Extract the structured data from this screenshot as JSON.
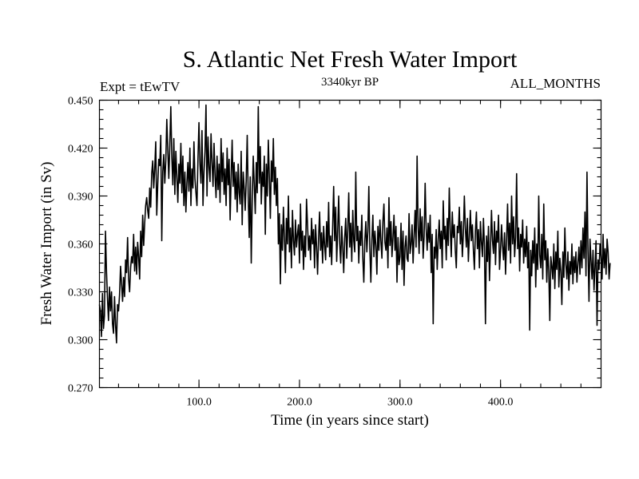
{
  "chart_data": {
    "type": "line",
    "title": "S. Atlantic Net Fresh Water Import",
    "subtitle_left": "Expt = tEwTV",
    "subtitle_center": "3340kyr BP",
    "subtitle_right": "ALL_MONTHS",
    "xlabel": "Time (in years since start)",
    "ylabel": "Fresh Water Import (in Sv)",
    "xlim": [
      1,
      500
    ],
    "ylim": [
      0.27,
      0.45
    ],
    "x_ticks": [
      100,
      200,
      300,
      400
    ],
    "x_tick_labels": [
      "100.0",
      "200.0",
      "300.0",
      "400.0"
    ],
    "y_ticks": [
      0.27,
      0.3,
      0.33,
      0.36,
      0.39,
      0.42,
      0.45
    ],
    "y_tick_labels": [
      "0.270",
      "0.300",
      "0.330",
      "0.360",
      "0.390",
      "0.420",
      "0.450"
    ],
    "grid": false,
    "series": [
      {
        "name": "Fresh Water Import",
        "color": "#000000",
        "x_start": 1,
        "x_step": 1,
        "values": [
          0.322,
          0.318,
          0.302,
          0.329,
          0.307,
          0.315,
          0.368,
          0.343,
          0.326,
          0.312,
          0.333,
          0.318,
          0.33,
          0.31,
          0.304,
          0.327,
          0.309,
          0.298,
          0.322,
          0.318,
          0.328,
          0.346,
          0.335,
          0.324,
          0.339,
          0.327,
          0.35,
          0.342,
          0.364,
          0.338,
          0.33,
          0.345,
          0.352,
          0.348,
          0.366,
          0.343,
          0.358,
          0.341,
          0.361,
          0.352,
          0.338,
          0.368,
          0.352,
          0.378,
          0.359,
          0.373,
          0.384,
          0.389,
          0.381,
          0.376,
          0.395,
          0.383,
          0.404,
          0.412,
          0.395,
          0.407,
          0.424,
          0.378,
          0.397,
          0.413,
          0.409,
          0.428,
          0.362,
          0.405,
          0.416,
          0.398,
          0.412,
          0.438,
          0.419,
          0.401,
          0.422,
          0.446,
          0.415,
          0.397,
          0.426,
          0.391,
          0.418,
          0.402,
          0.386,
          0.41,
          0.398,
          0.423,
          0.392,
          0.415,
          0.384,
          0.405,
          0.38,
          0.398,
          0.411,
          0.393,
          0.42,
          0.384,
          0.407,
          0.395,
          0.424,
          0.401,
          0.392,
          0.384,
          0.413,
          0.436,
          0.41,
          0.398,
          0.431,
          0.384,
          0.405,
          0.418,
          0.447,
          0.39,
          0.427,
          0.408,
          0.399,
          0.429,
          0.411,
          0.396,
          0.423,
          0.403,
          0.389,
          0.415,
          0.394,
          0.41,
          0.386,
          0.426,
          0.399,
          0.417,
          0.391,
          0.407,
          0.384,
          0.42,
          0.397,
          0.413,
          0.375,
          0.402,
          0.425,
          0.396,
          0.411,
          0.388,
          0.405,
          0.38,
          0.41,
          0.392,
          0.385,
          0.418,
          0.372,
          0.405,
          0.395,
          0.381,
          0.4,
          0.428,
          0.39,
          0.364,
          0.402,
          0.348,
          0.388,
          0.415,
          0.397,
          0.379,
          0.411,
          0.392,
          0.446,
          0.398,
          0.421,
          0.385,
          0.405,
          0.396,
          0.415,
          0.366,
          0.41,
          0.39,
          0.425,
          0.402,
          0.376,
          0.412,
          0.399,
          0.426,
          0.391,
          0.408,
          0.384,
          0.401,
          0.36,
          0.379,
          0.335,
          0.372,
          0.356,
          0.383,
          0.364,
          0.342,
          0.376,
          0.36,
          0.39,
          0.355,
          0.37,
          0.345,
          0.381,
          0.362,
          0.353,
          0.375,
          0.358,
          0.366,
          0.372,
          0.348,
          0.385,
          0.356,
          0.368,
          0.344,
          0.365,
          0.352,
          0.388,
          0.372,
          0.356,
          0.365,
          0.35,
          0.376,
          0.36,
          0.369,
          0.345,
          0.372,
          0.358,
          0.341,
          0.364,
          0.38,
          0.356,
          0.367,
          0.348,
          0.371,
          0.359,
          0.35,
          0.374,
          0.358,
          0.386,
          0.352,
          0.365,
          0.347,
          0.371,
          0.396,
          0.362,
          0.383,
          0.349,
          0.368,
          0.39,
          0.36,
          0.348,
          0.371,
          0.358,
          0.342,
          0.364,
          0.376,
          0.351,
          0.369,
          0.392,
          0.358,
          0.373,
          0.349,
          0.381,
          0.362,
          0.355,
          0.405,
          0.362,
          0.371,
          0.348,
          0.368,
          0.359,
          0.378,
          0.351,
          0.336,
          0.362,
          0.374,
          0.355,
          0.368,
          0.396,
          0.357,
          0.336,
          0.362,
          0.378,
          0.352,
          0.368,
          0.359,
          0.341,
          0.371,
          0.356,
          0.375,
          0.362,
          0.351,
          0.374,
          0.385,
          0.361,
          0.356,
          0.37,
          0.345,
          0.389,
          0.359,
          0.374,
          0.352,
          0.364,
          0.378,
          0.356,
          0.371,
          0.336,
          0.364,
          0.347,
          0.352,
          0.373,
          0.344,
          0.368,
          0.334,
          0.358,
          0.365,
          0.351,
          0.349,
          0.379,
          0.354,
          0.36,
          0.372,
          0.348,
          0.365,
          0.381,
          0.358,
          0.415,
          0.371,
          0.354,
          0.382,
          0.362,
          0.377,
          0.351,
          0.365,
          0.398,
          0.37,
          0.356,
          0.373,
          0.361,
          0.378,
          0.342,
          0.366,
          0.31,
          0.358,
          0.351,
          0.369,
          0.344,
          0.362,
          0.375,
          0.357,
          0.368,
          0.345,
          0.387,
          0.363,
          0.371,
          0.35,
          0.376,
          0.359,
          0.395,
          0.369,
          0.352,
          0.38,
          0.364,
          0.372,
          0.356,
          0.345,
          0.371,
          0.367,
          0.383,
          0.36,
          0.374,
          0.352,
          0.366,
          0.39,
          0.37,
          0.358,
          0.376,
          0.349,
          0.365,
          0.381,
          0.362,
          0.372,
          0.356,
          0.344,
          0.368,
          0.38,
          0.357,
          0.369,
          0.345,
          0.374,
          0.361,
          0.352,
          0.376,
          0.358,
          0.31,
          0.365,
          0.349,
          0.371,
          0.337,
          0.358,
          0.381,
          0.362,
          0.354,
          0.374,
          0.347,
          0.368,
          0.361,
          0.378,
          0.344,
          0.356,
          0.372,
          0.359,
          0.35,
          0.367,
          0.341,
          0.362,
          0.385,
          0.356,
          0.373,
          0.348,
          0.39,
          0.36,
          0.377,
          0.352,
          0.364,
          0.404,
          0.357,
          0.37,
          0.343,
          0.366,
          0.358,
          0.375,
          0.348,
          0.363,
          0.352,
          0.371,
          0.345,
          0.361,
          0.306,
          0.356,
          0.34,
          0.362,
          0.348,
          0.37,
          0.333,
          0.36,
          0.344,
          0.39,
          0.353,
          0.345,
          0.366,
          0.338,
          0.385,
          0.35,
          0.362,
          0.336,
          0.357,
          0.343,
          0.312,
          0.352,
          0.346,
          0.338,
          0.36,
          0.332,
          0.355,
          0.344,
          0.368,
          0.333,
          0.351,
          0.343,
          0.322,
          0.355,
          0.339,
          0.37,
          0.347,
          0.338,
          0.355,
          0.331,
          0.349,
          0.341,
          0.36,
          0.335,
          0.352,
          0.342,
          0.355,
          0.336,
          0.348,
          0.358,
          0.341,
          0.362,
          0.345,
          0.37,
          0.351,
          0.38,
          0.34,
          0.405,
          0.356,
          0.324,
          0.363,
          0.35,
          0.338,
          0.356,
          0.331,
          0.346,
          0.362,
          0.309,
          0.35,
          0.344,
          0.36,
          0.352,
          0.338,
          0.366,
          0.345,
          0.357,
          0.341,
          0.363,
          0.355,
          0.338,
          0.348
        ]
      }
    ]
  }
}
